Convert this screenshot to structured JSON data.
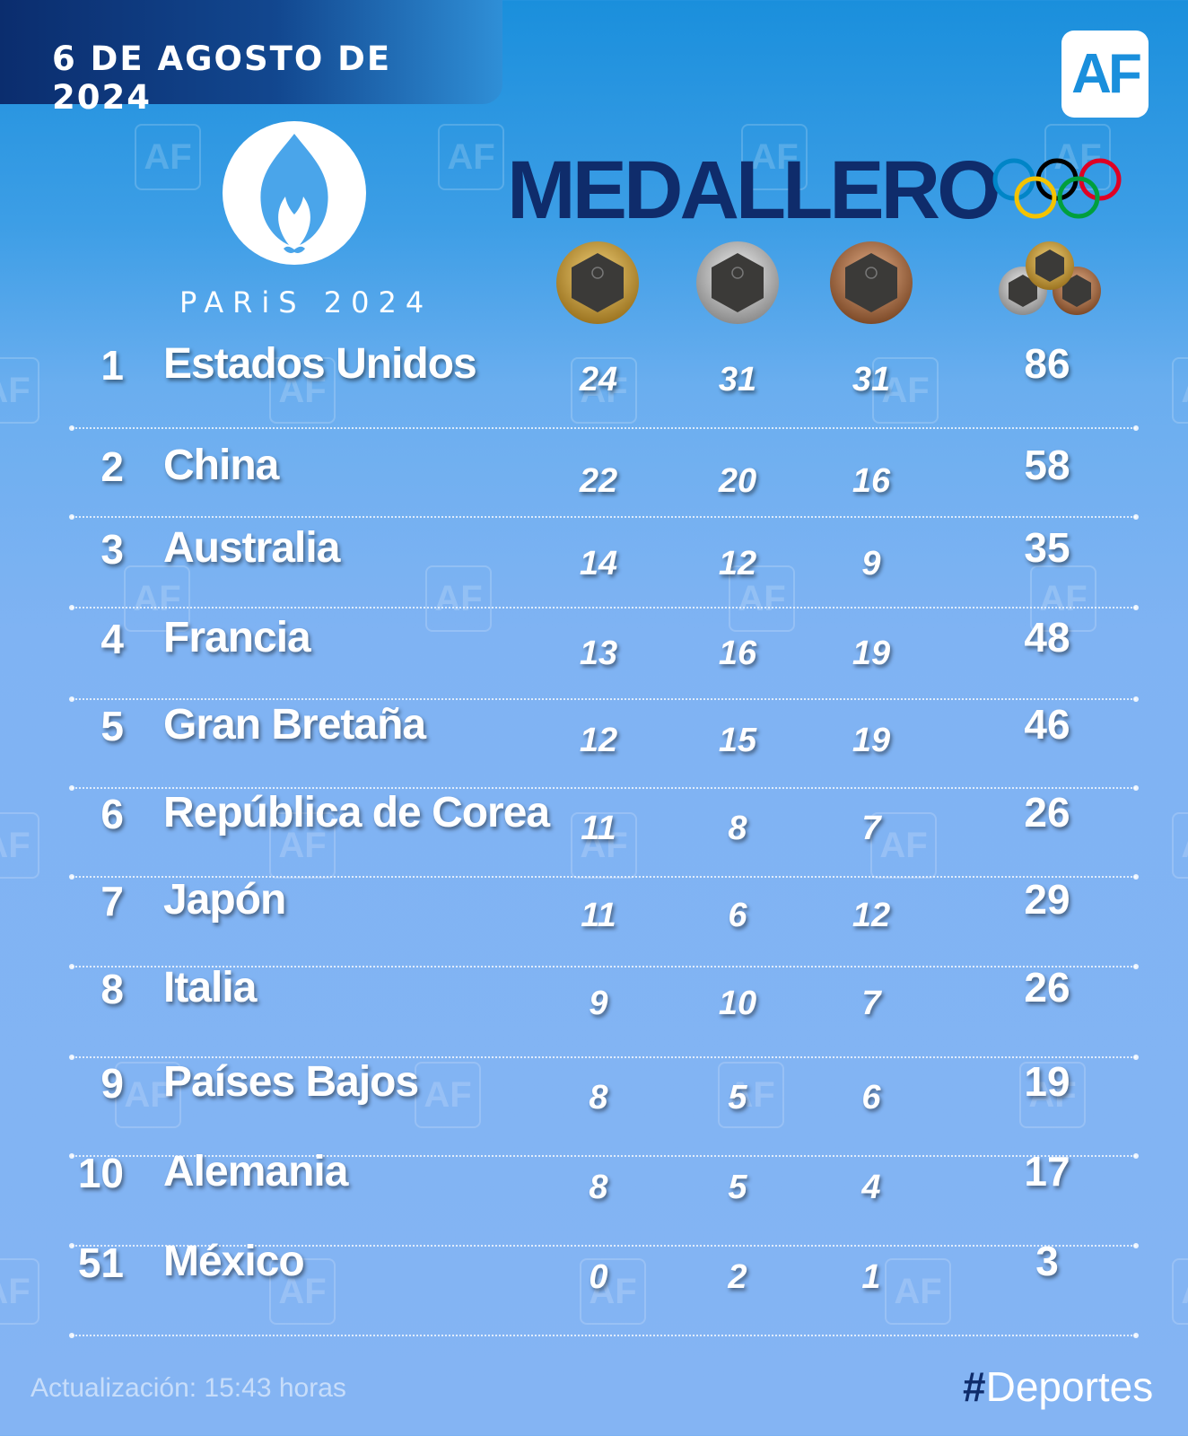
{
  "header": {
    "date": "6 DE AGOSTO DE 2024",
    "brand": "AF",
    "event_word": "PARiS 2024",
    "title": "MEDALLERO"
  },
  "medal_icons": [
    "gold-medal-icon",
    "silver-medal-icon",
    "bronze-medal-icon",
    "total-medals-icon"
  ],
  "colors": {
    "title": "#0f2c6b",
    "gold": "#c9a23a",
    "silver": "#b9b9b9",
    "bronze": "#b5774a",
    "rings": [
      "#0085c7",
      "#f4c300",
      "#000000",
      "#009f3d",
      "#df0024"
    ]
  },
  "table": {
    "rows": [
      {
        "rank": "1",
        "country": "Estados Unidos",
        "gold": "24",
        "silver": "31",
        "bronze": "31",
        "total": "86"
      },
      {
        "rank": "2",
        "country": "China",
        "gold": "22",
        "silver": "20",
        "bronze": "16",
        "total": "58"
      },
      {
        "rank": "3",
        "country": "Australia",
        "gold": "14",
        "silver": "12",
        "bronze": "9",
        "total": "35"
      },
      {
        "rank": "4",
        "country": "Francia",
        "gold": "13",
        "silver": "16",
        "bronze": "19",
        "total": "48"
      },
      {
        "rank": "5",
        "country": "Gran Bretaña",
        "gold": "12",
        "silver": "15",
        "bronze": "19",
        "total": "46"
      },
      {
        "rank": "6",
        "country": "República de Corea",
        "gold": "11",
        "silver": "8",
        "bronze": "7",
        "total": "26"
      },
      {
        "rank": "7",
        "country": "Japón",
        "gold": "11",
        "silver": "6",
        "bronze": "12",
        "total": "29"
      },
      {
        "rank": "8",
        "country": "Italia",
        "gold": "9",
        "silver": "10",
        "bronze": "7",
        "total": "26"
      },
      {
        "rank": "9",
        "country": "Países Bajos",
        "gold": "8",
        "silver": "5",
        "bronze": "6",
        "total": "19"
      },
      {
        "rank": "10",
        "country": "Alemania",
        "gold": "8",
        "silver": "5",
        "bronze": "4",
        "total": "17"
      },
      {
        "rank": "51",
        "country": "México",
        "gold": "0",
        "silver": "2",
        "bronze": "1",
        "total": "3"
      }
    ]
  },
  "footer": {
    "update": "Actualización: 15:43 horas",
    "hashtag_symbol": "#",
    "hashtag_text": "Deportes"
  }
}
